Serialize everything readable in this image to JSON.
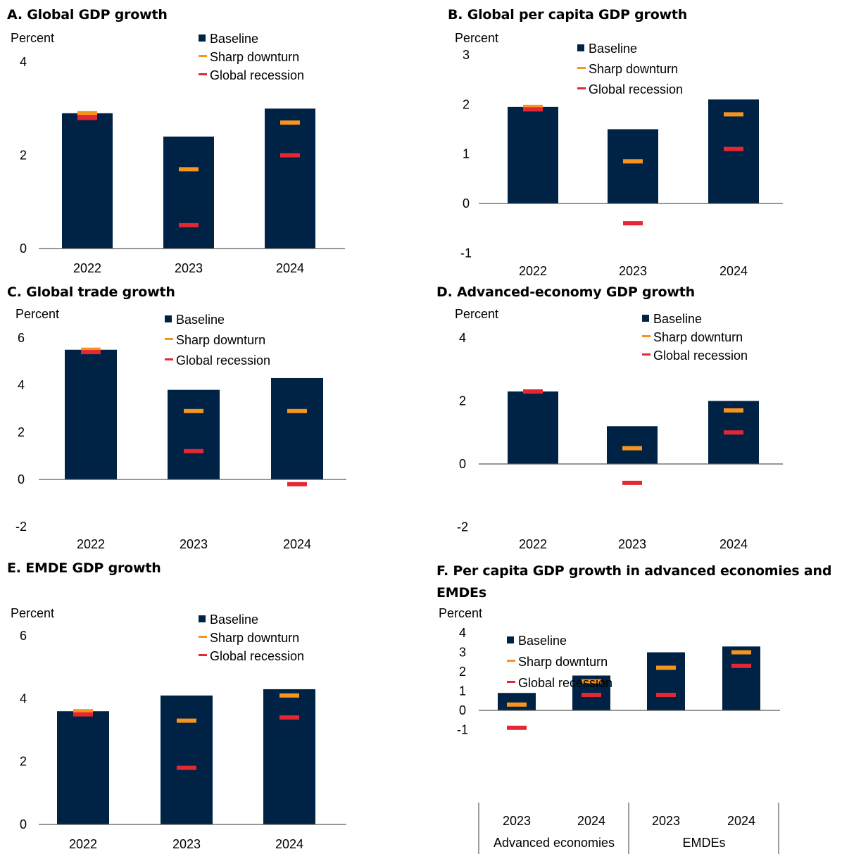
{
  "colors": {
    "baseline": "#002345",
    "sharp_downturn": "#F7941D",
    "global_recession": "#E52734",
    "axis": "#595959"
  },
  "legend_labels": [
    "Baseline",
    "Sharp downturn",
    "Global recession"
  ],
  "chart_data": [
    {
      "id": "A",
      "type": "bar",
      "title": "A. Global GDP growth",
      "ylabel": "Percent",
      "categories": [
        "2022",
        "2023",
        "2024"
      ],
      "ylim": [
        0,
        4
      ],
      "yticks": [
        0,
        2,
        4
      ],
      "series": [
        {
          "name": "Baseline",
          "kind": "bar",
          "values": [
            2.9,
            2.4,
            3.0
          ]
        },
        {
          "name": "Sharp downturn",
          "kind": "marker",
          "values": [
            2.9,
            1.7,
            2.7
          ]
        },
        {
          "name": "Global recession",
          "kind": "marker",
          "values": [
            2.8,
            0.5,
            2.0
          ]
        }
      ]
    },
    {
      "id": "B",
      "type": "bar",
      "title": "B. Global per capita GDP growth",
      "ylabel": "Percent",
      "categories": [
        "2022",
        "2023",
        "2024"
      ],
      "ylim": [
        -1,
        3
      ],
      "yticks": [
        -1,
        0,
        1,
        2,
        3
      ],
      "series": [
        {
          "name": "Baseline",
          "kind": "bar",
          "values": [
            1.95,
            1.5,
            2.1
          ]
        },
        {
          "name": "Sharp downturn",
          "kind": "marker",
          "values": [
            1.95,
            0.85,
            1.8
          ]
        },
        {
          "name": "Global recession",
          "kind": "marker",
          "values": [
            1.9,
            -0.4,
            1.1
          ]
        }
      ]
    },
    {
      "id": "C",
      "type": "bar",
      "title": "C. Global trade growth",
      "ylabel": "Percent",
      "categories": [
        "2022",
        "2023",
        "2024"
      ],
      "ylim": [
        -2,
        6
      ],
      "yticks": [
        -2,
        0,
        2,
        4,
        6
      ],
      "series": [
        {
          "name": "Baseline",
          "kind": "bar",
          "values": [
            5.5,
            3.8,
            4.3
          ]
        },
        {
          "name": "Sharp downturn",
          "kind": "marker",
          "values": [
            5.5,
            2.9,
            2.9
          ]
        },
        {
          "name": "Global recession",
          "kind": "marker",
          "values": [
            5.4,
            1.2,
            -0.2
          ]
        }
      ]
    },
    {
      "id": "D",
      "type": "bar",
      "title": "D. Advanced-economy GDP growth",
      "ylabel": "Percent",
      "categories": [
        "2022",
        "2023",
        "2024"
      ],
      "ylim": [
        -2,
        4
      ],
      "yticks": [
        -2,
        0,
        2,
        4
      ],
      "series": [
        {
          "name": "Baseline",
          "kind": "bar",
          "values": [
            2.3,
            1.2,
            2.0
          ]
        },
        {
          "name": "Sharp downturn",
          "kind": "marker",
          "values": [
            2.3,
            0.5,
            1.7
          ]
        },
        {
          "name": "Global recession",
          "kind": "marker",
          "values": [
            2.3,
            -0.6,
            1.0
          ]
        }
      ]
    },
    {
      "id": "E",
      "type": "bar",
      "title": "E. EMDE GDP growth",
      "ylabel": "Percent",
      "categories": [
        "2022",
        "2023",
        "2024"
      ],
      "ylim": [
        0,
        6
      ],
      "yticks": [
        0,
        2,
        4,
        6
      ],
      "series": [
        {
          "name": "Baseline",
          "kind": "bar",
          "values": [
            3.6,
            4.1,
            4.3
          ]
        },
        {
          "name": "Sharp downturn",
          "kind": "marker",
          "values": [
            3.6,
            3.3,
            4.1
          ]
        },
        {
          "name": "Global recession",
          "kind": "marker",
          "values": [
            3.5,
            1.8,
            3.4
          ]
        }
      ]
    },
    {
      "id": "F",
      "type": "bar",
      "title": "F. Per capita GDP growth in advanced economies and EMDEs",
      "ylabel": "Percent",
      "categories": [
        "2023",
        "2024",
        "2023",
        "2024"
      ],
      "groups": [
        {
          "label": "Advanced economies",
          "span": 2
        },
        {
          "label": "EMDEs",
          "span": 2
        }
      ],
      "ylim": [
        -1,
        4
      ],
      "yticks": [
        -1,
        0,
        1,
        2,
        3,
        4
      ],
      "series": [
        {
          "name": "Baseline",
          "kind": "bar",
          "values": [
            0.9,
            1.8,
            3.0,
            3.3
          ]
        },
        {
          "name": "Sharp downturn",
          "kind": "marker",
          "values": [
            0.3,
            1.5,
            2.2,
            3.0
          ]
        },
        {
          "name": "Global recession",
          "kind": "marker",
          "values": [
            -0.9,
            0.8,
            0.8,
            2.3
          ]
        }
      ]
    }
  ]
}
